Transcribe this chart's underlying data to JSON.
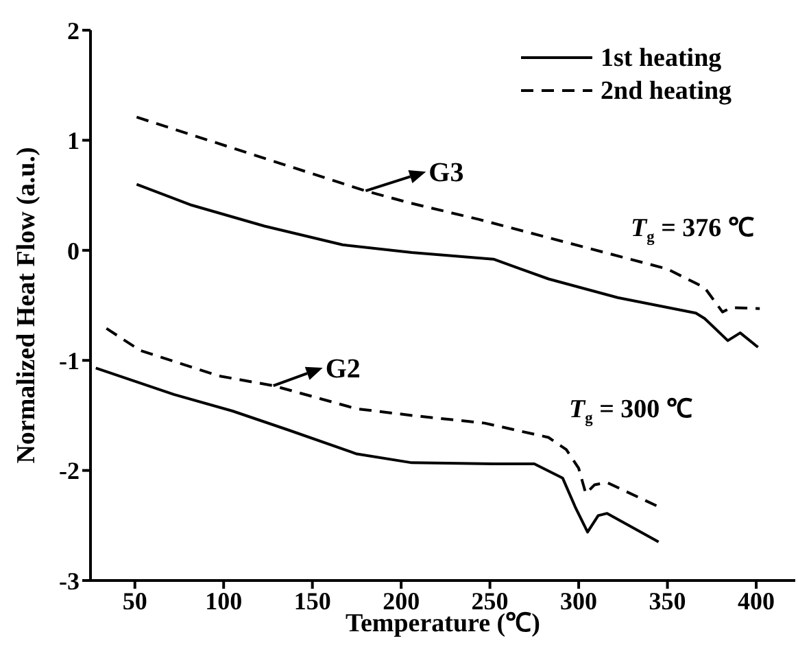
{
  "chart_data": {
    "type": "line",
    "xlabel": "Temperature (℃)",
    "ylabel": "Normalized Heat Flow (a.u.)",
    "xlim": [
      25,
      422
    ],
    "xticks": [
      50,
      100,
      150,
      200,
      250,
      300,
      350,
      400
    ],
    "ylim": [
      -3,
      2
    ],
    "yticks": [
      -3,
      -2,
      -1,
      0,
      1,
      2
    ],
    "grid": false,
    "legend": "top right",
    "marker": "none",
    "series": [
      {
        "name": "1st heating",
        "color": "#000000",
        "line_style": "solid",
        "x": [
          51,
          82,
          123,
          167,
          206,
          252,
          283,
          322,
          366,
          371,
          384,
          391,
          401
        ],
        "values": [
          0.6,
          0.41,
          0.22,
          0.05,
          -0.02,
          -0.08,
          -0.26,
          -0.43,
          -0.57,
          -0.62,
          -0.82,
          -0.75,
          -0.88
        ]
      },
      {
        "name": "2nd heating",
        "color": "#000000",
        "line_style": "dashed",
        "x": [
          51,
          180,
          205,
          244,
          350,
          371,
          381,
          386,
          402
        ],
        "values": [
          1.21,
          0.54,
          0.43,
          0.28,
          -0.17,
          -0.34,
          -0.56,
          -0.52,
          -0.53
        ]
      },
      {
        "color": "#000000",
        "line_style": "solid",
        "x": [
          28,
          72,
          105,
          136,
          175,
          206,
          252,
          275,
          291,
          298,
          305,
          311,
          316,
          345
        ],
        "values": [
          -1.07,
          -1.31,
          -1.46,
          -1.63,
          -1.85,
          -1.93,
          -1.94,
          -1.94,
          -2.07,
          -2.33,
          -2.56,
          -2.41,
          -2.39,
          -2.65
        ]
      },
      {
        "color": "#000000",
        "line_style": "dashed",
        "x": [
          34,
          53,
          97,
          128,
          175,
          206,
          247,
          283,
          293,
          300,
          304,
          309,
          316,
          345
        ],
        "values": [
          -0.71,
          -0.91,
          -1.14,
          -1.23,
          -1.44,
          -1.5,
          -1.57,
          -1.7,
          -1.81,
          -1.98,
          -2.21,
          -2.13,
          -2.11,
          -2.33
        ]
      }
    ],
    "annotations": [
      {
        "text": "G3",
        "x": 180,
        "y": 0.54
      },
      {
        "text": "G2",
        "x": 128,
        "y": -1.23
      },
      "T$_{g}$ = 376 ℃",
      "T$_{g}$ = 300 ℃"
    ]
  }
}
